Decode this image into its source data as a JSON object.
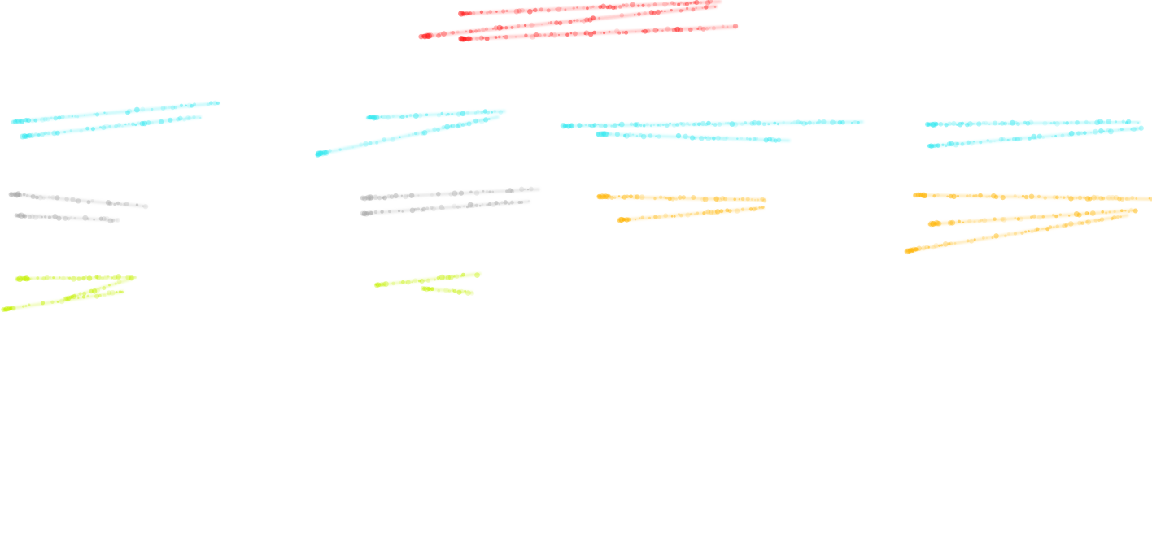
{
  "diagram": {
    "title": "",
    "background": "#ffffff",
    "palette": {
      "root": "#ff1a1a",
      "level1": "#33e8f0",
      "level2_gray": "#a8a8a8",
      "level2_orange": "#ffb400",
      "level3": "#c4f000"
    },
    "nodes": [
      {
        "id": "root",
        "level": 0,
        "color_key": "root",
        "label_text": "",
        "lines": 3
      },
      {
        "id": "l1-a",
        "level": 1,
        "color_key": "level1",
        "label_text": "",
        "lines": 2
      },
      {
        "id": "l1-b",
        "level": 1,
        "color_key": "level1",
        "label_text": "",
        "lines": 2
      },
      {
        "id": "l1-c",
        "level": 1,
        "color_key": "level1",
        "label_text": "",
        "lines": 2
      },
      {
        "id": "l1-d",
        "level": 1,
        "color_key": "level1",
        "label_text": "",
        "lines": 2
      },
      {
        "id": "l2-a",
        "level": 2,
        "color_key": "level2_gray",
        "label_text": "",
        "lines": 2
      },
      {
        "id": "l2-b",
        "level": 2,
        "color_key": "level2_gray",
        "label_text": "",
        "lines": 2
      },
      {
        "id": "l2-c",
        "level": 2,
        "color_key": "level2_orange",
        "label_text": "",
        "lines": 2
      },
      {
        "id": "l2-d",
        "level": 2,
        "color_key": "level2_orange",
        "label_text": "",
        "lines": 3
      },
      {
        "id": "l3-a",
        "level": 3,
        "color_key": "level3",
        "label_text": "",
        "lines": 3
      },
      {
        "id": "l3-b",
        "level": 3,
        "color_key": "level3",
        "label_text": "",
        "lines": 2
      }
    ]
  }
}
